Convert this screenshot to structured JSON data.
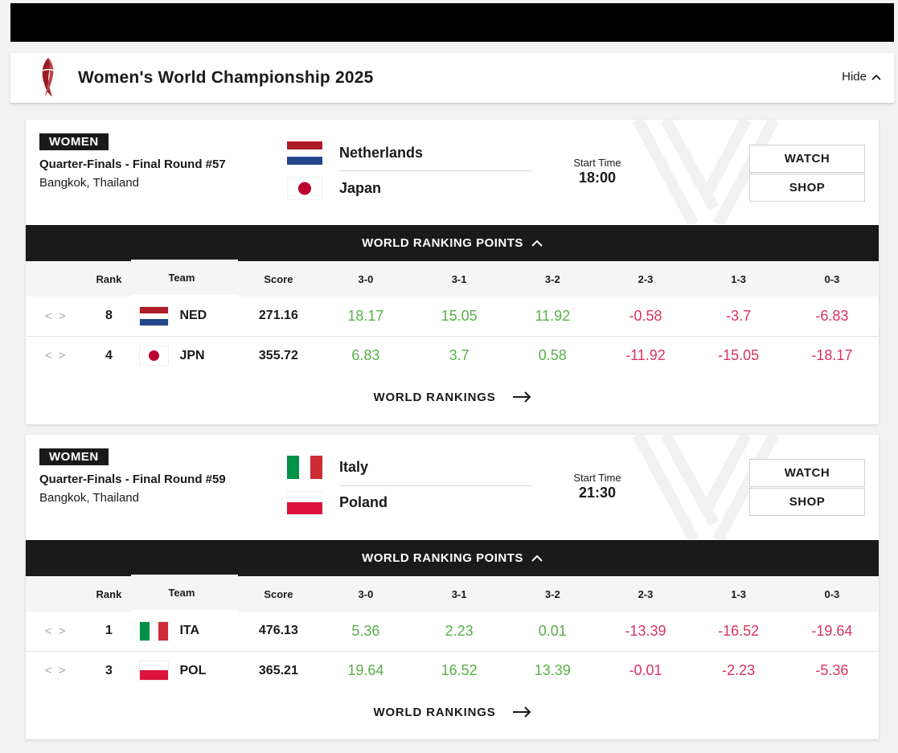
{
  "header": {
    "title": "Women's World Championship 2025",
    "hide_label": "Hide"
  },
  "matches": [
    {
      "gender": "WOMEN",
      "round": "Quarter-Finals - Final Round #57",
      "venue": "Bangkok, Thailand",
      "team1": "Netherlands",
      "team2": "Japan",
      "start_label": "Start Time",
      "start_time": "18:00",
      "watch": "WATCH",
      "shop": "SHOP",
      "points_title": "WORLD RANKING POINTS",
      "link_label": "WORLD RANKINGS",
      "rows": [
        {
          "rank": "8",
          "code": "NED",
          "score": "271.16",
          "p30": "18.17",
          "p31": "15.05",
          "p32": "11.92",
          "p23": "-0.58",
          "p13": "-3.7",
          "p03": "-6.83"
        },
        {
          "rank": "4",
          "code": "JPN",
          "score": "355.72",
          "p30": "6.83",
          "p31": "3.7",
          "p32": "0.58",
          "p23": "-11.92",
          "p13": "-15.05",
          "p03": "-18.17"
        }
      ]
    },
    {
      "gender": "WOMEN",
      "round": "Quarter-Finals - Final Round #59",
      "venue": "Bangkok, Thailand",
      "team1": "Italy",
      "team2": "Poland",
      "start_label": "Start Time",
      "start_time": "21:30",
      "watch": "WATCH",
      "shop": "SHOP",
      "points_title": "WORLD RANKING POINTS",
      "link_label": "WORLD RANKINGS",
      "rows": [
        {
          "rank": "1",
          "code": "ITA",
          "score": "476.13",
          "p30": "5.36",
          "p31": "2.23",
          "p32": "0.01",
          "p23": "-13.39",
          "p13": "-16.52",
          "p03": "-19.64"
        },
        {
          "rank": "3",
          "code": "POL",
          "score": "365.21",
          "p30": "19.64",
          "p31": "16.52",
          "p32": "13.39",
          "p23": "-0.01",
          "p13": "-2.23",
          "p03": "-5.36"
        }
      ]
    }
  ],
  "columns": {
    "rank": "Rank",
    "team": "Team",
    "score": "Score",
    "c30": "3-0",
    "c31": "3-1",
    "c32": "3-2",
    "c23": "2-3",
    "c13": "1-3",
    "c03": "0-3"
  },
  "colors": {
    "positive": "#58b048",
    "negative": "#d8345f",
    "dark": "#1a1a1a"
  },
  "icons": {
    "nav": "chevron-left-right-icon",
    "collapse": "chevron-up-icon",
    "link": "arrow-right-icon"
  }
}
